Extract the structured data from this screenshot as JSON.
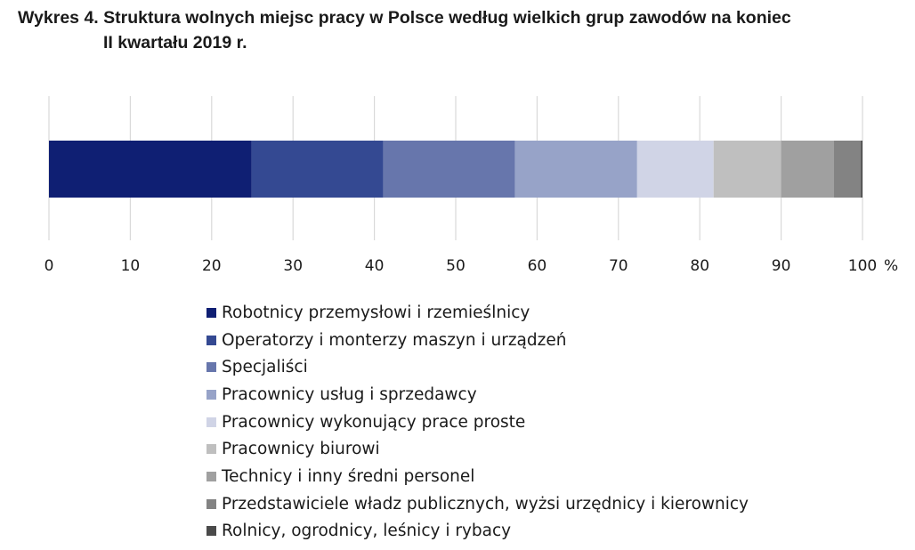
{
  "title": {
    "line1": "Wykres 4. Struktura wolnych miejsc pracy w Polsce według wielkich grup zawodów na koniec",
    "line2": "II kwartału 2019 r."
  },
  "chart_data": {
    "type": "bar",
    "orientation": "horizontal-stacked-100",
    "title": "Wykres 4. Struktura wolnych miejsc pracy w Polsce według wielkich grup zawodów na koniec II kwartału 2019 r.",
    "xlim": [
      0,
      100
    ],
    "xticks": [
      0,
      10,
      20,
      30,
      40,
      50,
      60,
      70,
      80,
      90,
      100
    ],
    "xunit": "%",
    "grid": "vertical",
    "legend_position": "bottom",
    "series": [
      {
        "name": "Robotnicy przemysłowi i rzemieślnicy",
        "value": 24.9,
        "color": "#0f1f73"
      },
      {
        "name": "Operatorzy i monterzy maszyn i urządzeń",
        "value": 16.2,
        "color": "#344992"
      },
      {
        "name": "Specjaliści",
        "value": 16.2,
        "color": "#6776ac"
      },
      {
        "name": "Pracownicy usług i sprzedawcy",
        "value": 15.0,
        "color": "#97a3c8"
      },
      {
        "name": "Pracownicy wykonujący prace proste",
        "value": 9.4,
        "color": "#d0d4e6"
      },
      {
        "name": "Pracownicy biurowi",
        "value": 8.3,
        "color": "#bfbfbf"
      },
      {
        "name": "Technicy i inny średni personel",
        "value": 6.5,
        "color": "#a0a0a0"
      },
      {
        "name": "Przedstawiciele władz publicznych, wyżsi urzędnicy i kierownicy",
        "value": 3.3,
        "color": "#838383"
      },
      {
        "name": "Rolnicy, ogrodnicy, leśnicy i rybacy",
        "value": 0.2,
        "color": "#4a4a4a"
      }
    ]
  }
}
